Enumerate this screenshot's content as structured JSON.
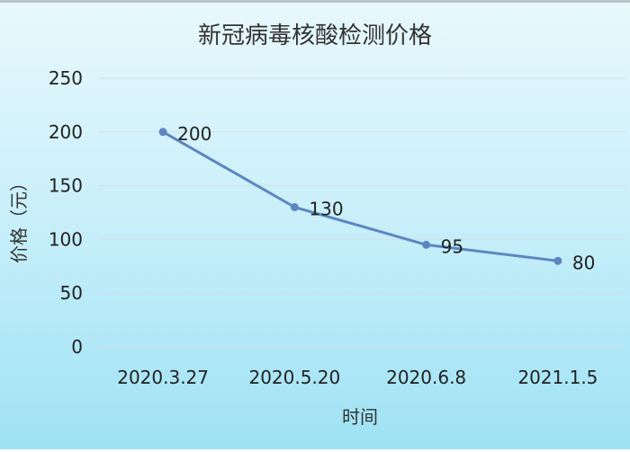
{
  "chart_data": {
    "type": "line",
    "title": "新冠病毒核酸检测价格",
    "xlabel": "时间",
    "ylabel": "价格（元）",
    "categories": [
      "2020.3.27",
      "2020.5.20",
      "2020.6.8",
      "2021.1.5"
    ],
    "series": [
      {
        "name": "价格",
        "values": [
          200,
          130,
          95,
          80
        ],
        "color": "#5b86c0"
      }
    ],
    "data_labels": [
      "200",
      "130",
      "95",
      "80"
    ],
    "ylim": [
      0,
      250
    ],
    "yticks": [
      0,
      50,
      100,
      150,
      200,
      250
    ],
    "ytick_labels": [
      "0",
      "50",
      "100",
      "150",
      "200",
      "250"
    ],
    "grid": true,
    "legend": "none"
  }
}
